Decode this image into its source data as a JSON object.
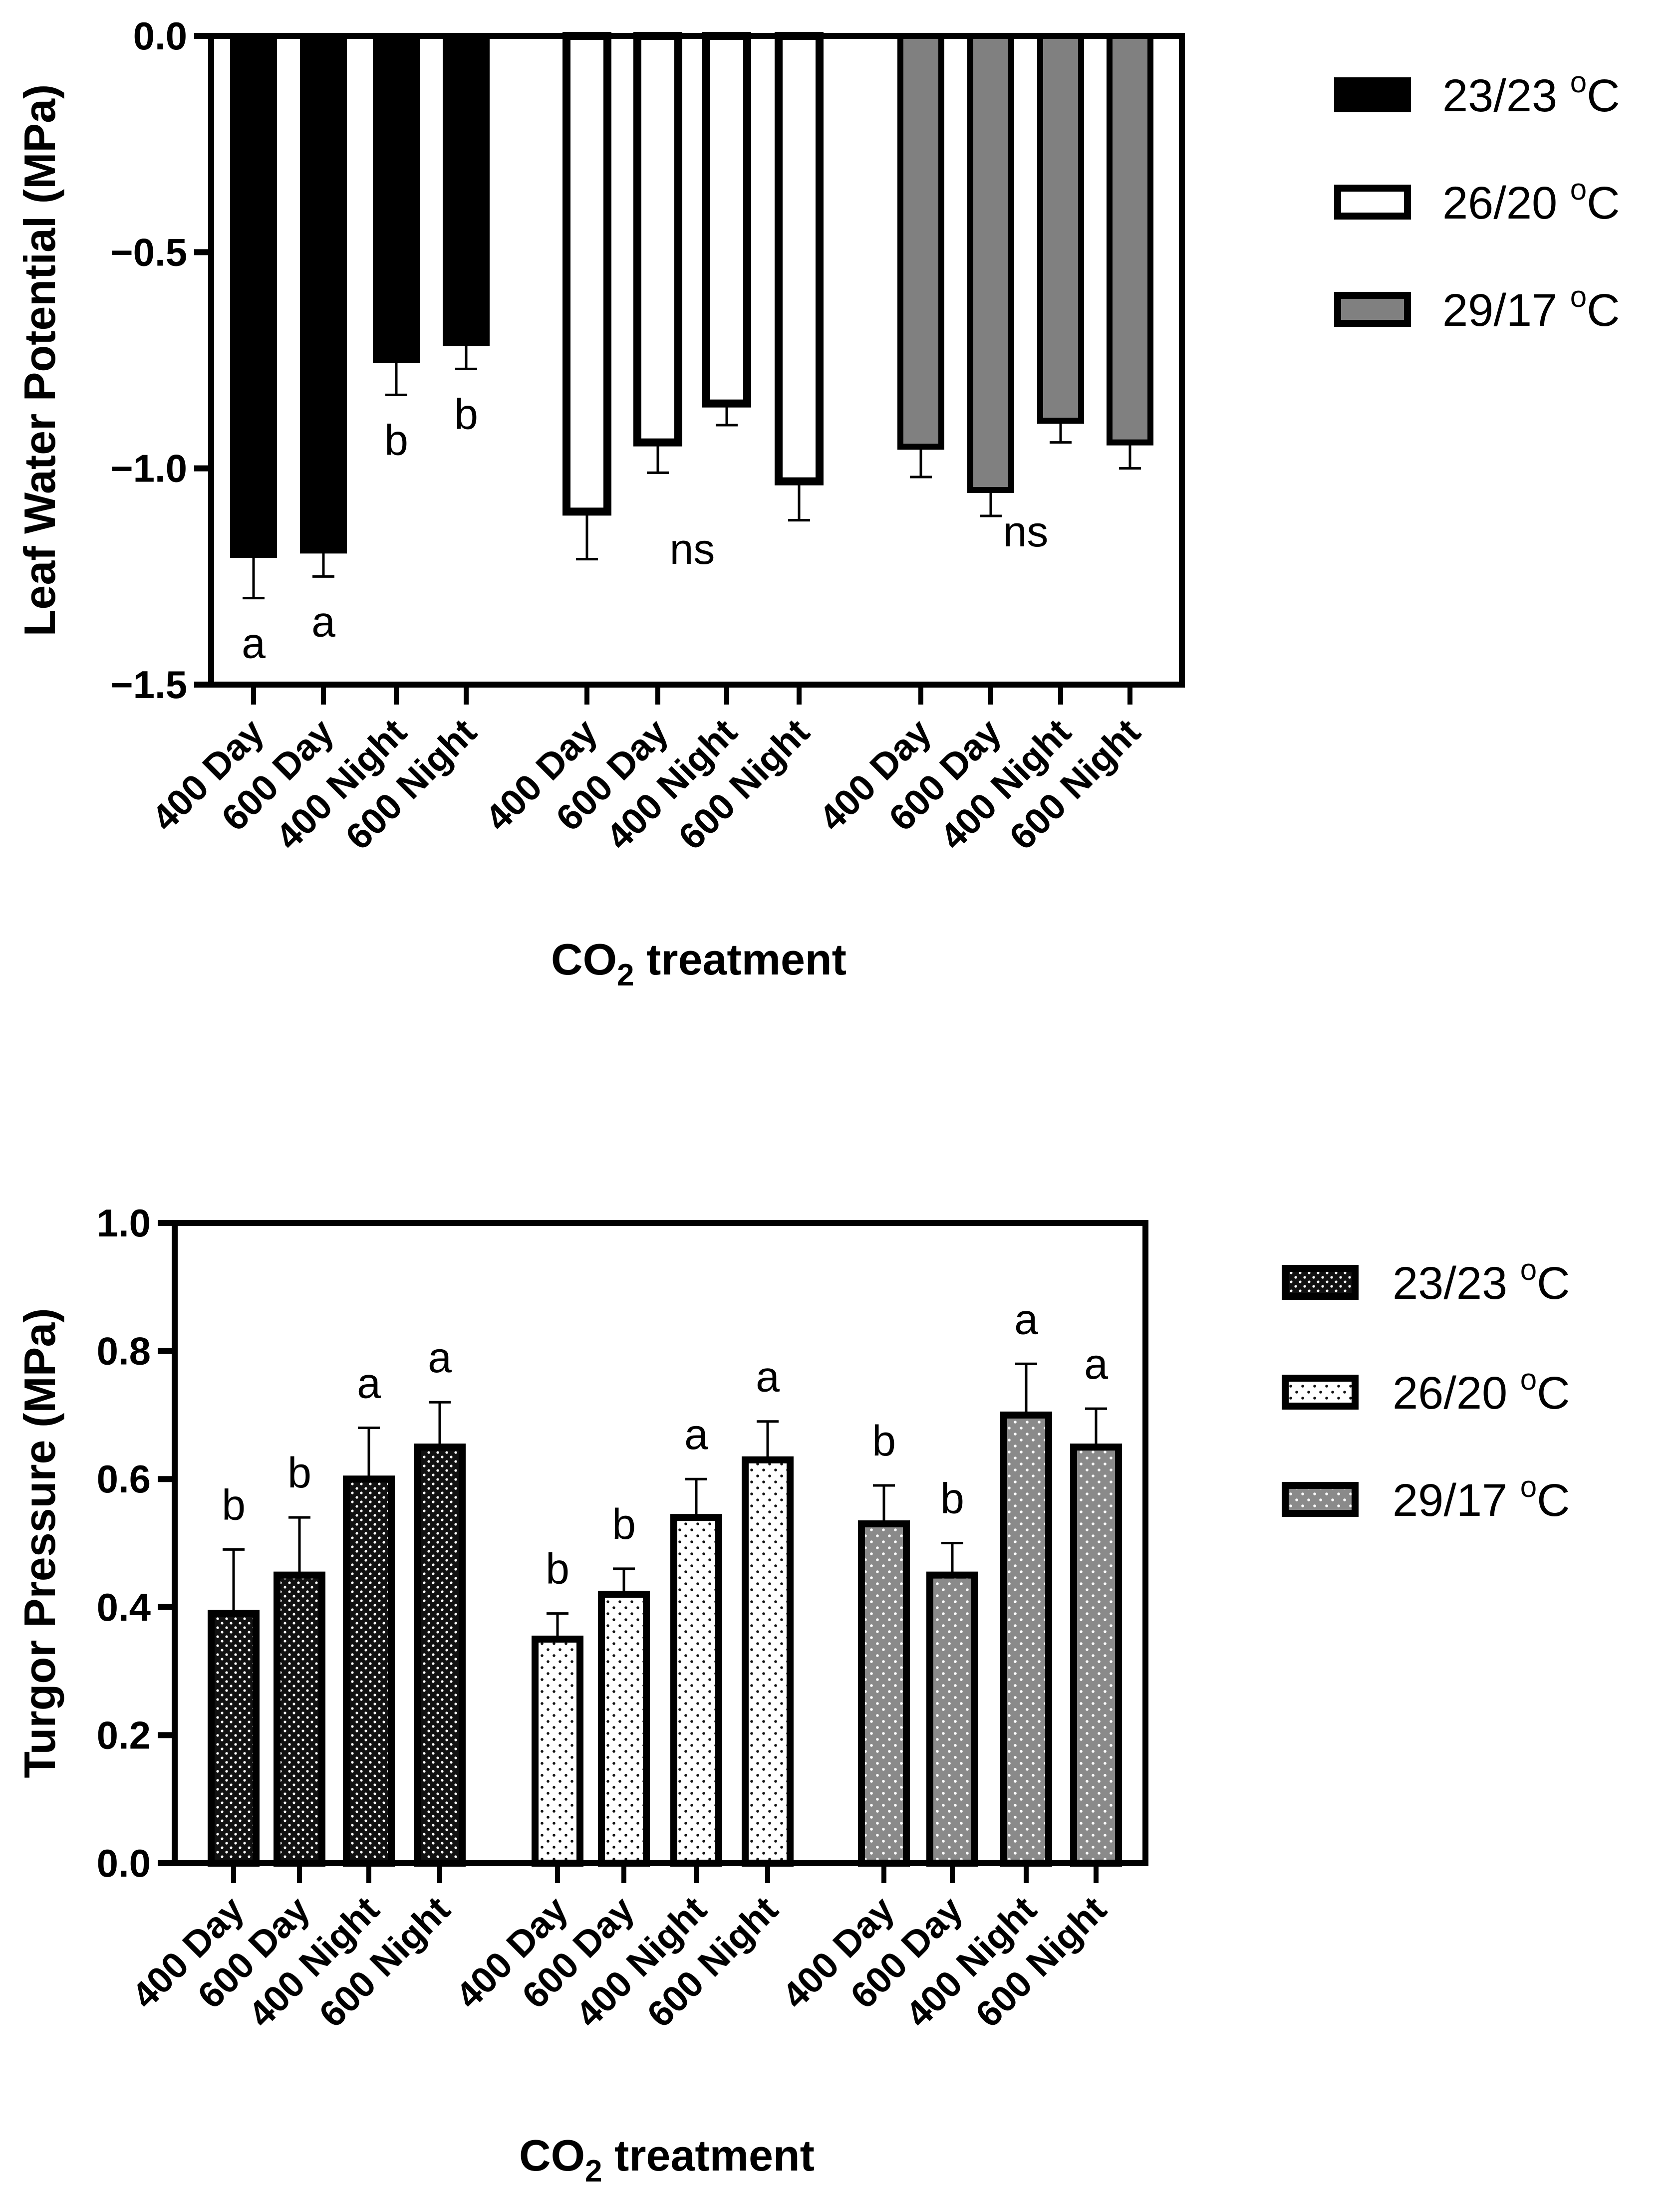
{
  "chart_data": [
    {
      "type": "bar",
      "name": "leaf-water-potential",
      "ylabel": "Leaf Water Potential (MPa)",
      "xlabel_main": "CO",
      "xlabel_sub": "2",
      "xlabel_rest": " treatment",
      "ylim": [
        -1.5,
        0.0
      ],
      "yticks": [
        0.0,
        -0.5,
        -1.0,
        -1.5
      ],
      "ytick_labels": [
        "0.0",
        "−0.5",
        "−1.0",
        "−1.5"
      ],
      "categories": [
        "400 Day",
        "600 Day",
        "400 Night",
        "600 Night"
      ],
      "series": [
        {
          "name": "23/23",
          "unit_sup": "o",
          "unit": "C",
          "fill": "#000000",
          "values": [
            -1.2,
            -1.19,
            -0.75,
            -0.71
          ],
          "errors": [
            0.1,
            0.06,
            0.08,
            0.06
          ],
          "sig": [
            "a",
            "a",
            "b",
            "b"
          ],
          "group_sig": ""
        },
        {
          "name": "26/20",
          "unit_sup": "o",
          "unit": "C",
          "fill": "#ffffff",
          "values": [
            -1.1,
            -0.94,
            -0.85,
            -1.03
          ],
          "errors": [
            0.11,
            0.07,
            0.05,
            0.09
          ],
          "sig": [
            "",
            "",
            "",
            ""
          ],
          "group_sig": "ns"
        },
        {
          "name": "29/17",
          "unit_sup": "o",
          "unit": "C",
          "fill": "#808080",
          "values": [
            -0.95,
            -1.05,
            -0.89,
            -0.94
          ],
          "errors": [
            0.07,
            0.06,
            0.05,
            0.06
          ],
          "sig": [
            "",
            "",
            "",
            ""
          ],
          "group_sig": "ns"
        }
      ]
    },
    {
      "type": "bar",
      "name": "turgor-pressure",
      "ylabel": "Turgor Pressure (MPa)",
      "xlabel_main": "CO",
      "xlabel_sub": "2",
      "xlabel_rest": " treatment",
      "ylim": [
        0.0,
        1.0
      ],
      "yticks": [
        0.0,
        0.2,
        0.4,
        0.6,
        0.8,
        1.0
      ],
      "ytick_labels": [
        "0.0",
        "0.2",
        "0.4",
        "0.6",
        "0.8",
        "1.0"
      ],
      "categories": [
        "400 Day",
        "600 Day",
        "400 Night",
        "600 Night"
      ],
      "series": [
        {
          "name": "23/23",
          "unit_sup": "o",
          "unit": "C",
          "fill": "#000000",
          "pattern": "dark-dots",
          "values": [
            0.39,
            0.45,
            0.6,
            0.65
          ],
          "errors": [
            0.1,
            0.09,
            0.08,
            0.07
          ],
          "sig": [
            "b",
            "b",
            "a",
            "a"
          ],
          "group_sig": ""
        },
        {
          "name": "26/20",
          "unit_sup": "o",
          "unit": "C",
          "fill": "#ffffff",
          "pattern": "light-dots",
          "values": [
            0.35,
            0.42,
            0.54,
            0.63
          ],
          "errors": [
            0.04,
            0.04,
            0.06,
            0.06
          ],
          "sig": [
            "b",
            "b",
            "a",
            "a"
          ],
          "group_sig": ""
        },
        {
          "name": "29/17",
          "unit_sup": "o",
          "unit": "C",
          "fill": "#808080",
          "pattern": "gray-dots",
          "values": [
            0.53,
            0.45,
            0.7,
            0.65
          ],
          "errors": [
            0.06,
            0.05,
            0.08,
            0.06
          ],
          "sig": [
            "b",
            "b",
            "a",
            "a"
          ],
          "group_sig": ""
        }
      ]
    }
  ]
}
